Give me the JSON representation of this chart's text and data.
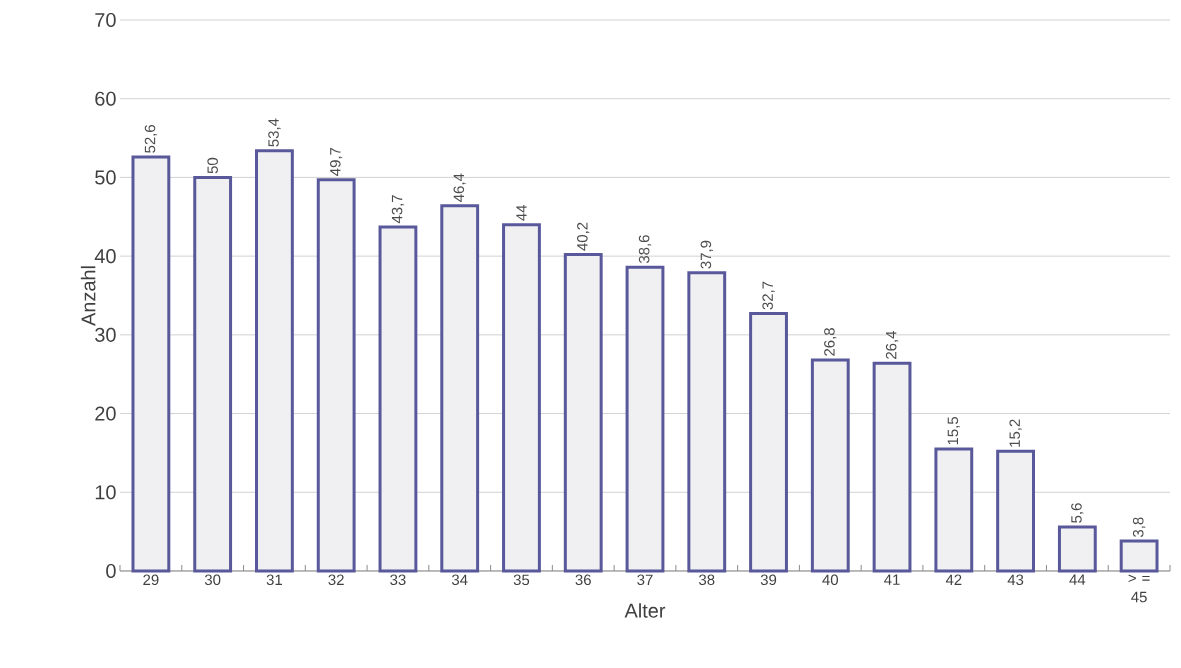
{
  "chart_data": {
    "type": "bar",
    "xlabel": "Alter",
    "ylabel": "Anzahl",
    "categories": [
      "29",
      "30",
      "31",
      "32",
      "33",
      "34",
      "35",
      "36",
      "37",
      "38",
      "39",
      "40",
      "41",
      "42",
      "43",
      "44",
      "> = 45"
    ],
    "values": [
      52.6,
      50,
      53.4,
      49.7,
      43.7,
      46.4,
      44,
      40.2,
      38.6,
      37.9,
      32.7,
      26.8,
      26.4,
      15.5,
      15.2,
      5.6,
      3.8
    ],
    "value_labels": [
      "52,6",
      "50",
      "53,4",
      "49,7",
      "43,7",
      "46,4",
      "44",
      "40,2",
      "38,6",
      "37,9",
      "32,7",
      "26,8",
      "26,4",
      "15,5",
      "15,2",
      "5,6",
      "3,8"
    ],
    "color": "#f0f0f2",
    "ylim": [
      0,
      70
    ],
    "yticks": [
      0,
      10,
      20,
      30,
      40,
      50,
      60,
      70
    ],
    "grid": "y"
  }
}
